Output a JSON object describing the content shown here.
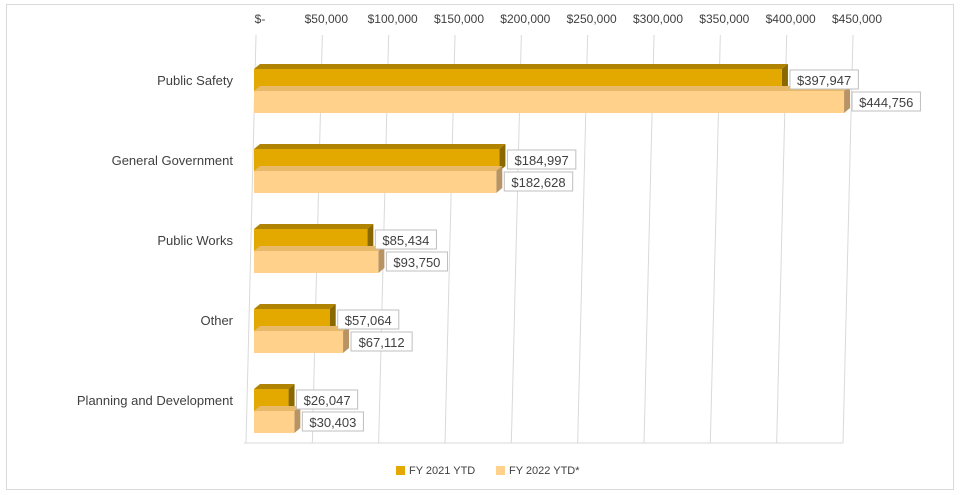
{
  "chart_data": {
    "type": "bar",
    "orientation": "horizontal",
    "style": "3d-clustered",
    "categories": [
      "Public Safety",
      "General Government",
      "Public Works",
      "Other",
      "Planning and Development"
    ],
    "series": [
      {
        "name": "FY 2021 YTD",
        "values": [
          397947,
          184997,
          85434,
          57064,
          26047
        ],
        "labels": [
          "$397,947",
          "$184,997",
          "$85,434",
          "$57,064",
          "$26,047"
        ],
        "color": "#E3A900",
        "top_color": "#B08400",
        "side_color": "#8A6800"
      },
      {
        "name": "FY 2022 YTD*",
        "values": [
          444756,
          182628,
          93750,
          67112,
          30403
        ],
        "labels": [
          "$444,756",
          "$182,628",
          "$93,750",
          "$67,112",
          "$30,403"
        ],
        "color": "#FFD18A",
        "top_color": "#E8B968",
        "side_color": "#B89464"
      }
    ],
    "xlim": [
      0,
      450000
    ],
    "xticks": [
      0,
      50000,
      100000,
      150000,
      200000,
      250000,
      300000,
      350000,
      400000,
      450000
    ],
    "xtick_labels": [
      "$-",
      "$50,000",
      "$100,000",
      "$150,000",
      "$200,000",
      "$250,000",
      "$300,000",
      "$350,000",
      "$400,000",
      "$450,000"
    ],
    "grid": true,
    "legend_position": "bottom",
    "gridline_color": "#d9d9d9"
  }
}
